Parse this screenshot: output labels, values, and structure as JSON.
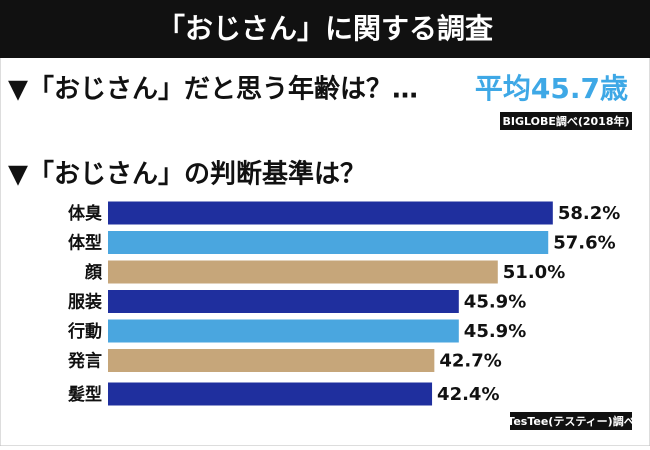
{
  "header": {
    "title": "「おじさん」に関する調査"
  },
  "question1": {
    "text": "▼「おじさん」だと思う年齢は？…",
    "answer": "平均45.7歳",
    "source": "BIGLOBE調べ(2018年)"
  },
  "chart_data": {
    "type": "bar",
    "orientation": "horizontal",
    "title": "▼「おじさん」の判断基準は？",
    "categories": [
      "体臭",
      "体型",
      "顔",
      "服装",
      "行動",
      "発言",
      "髪型"
    ],
    "values": [
      58.2,
      57.6,
      51.0,
      45.9,
      45.9,
      42.7,
      42.4
    ],
    "value_labels": [
      "58.2%",
      "57.6%",
      "51.0%",
      "45.9%",
      "45.9%",
      "42.7%",
      "42.4%"
    ],
    "colors": [
      "#1f2f9e",
      "#4aa6df",
      "#c6a67a",
      "#1f2f9e",
      "#4aa6df",
      "#c6a67a",
      "#1f2f9e"
    ],
    "xlim": [
      0,
      70
    ],
    "source": "TesTee(テスティー)調べ"
  }
}
